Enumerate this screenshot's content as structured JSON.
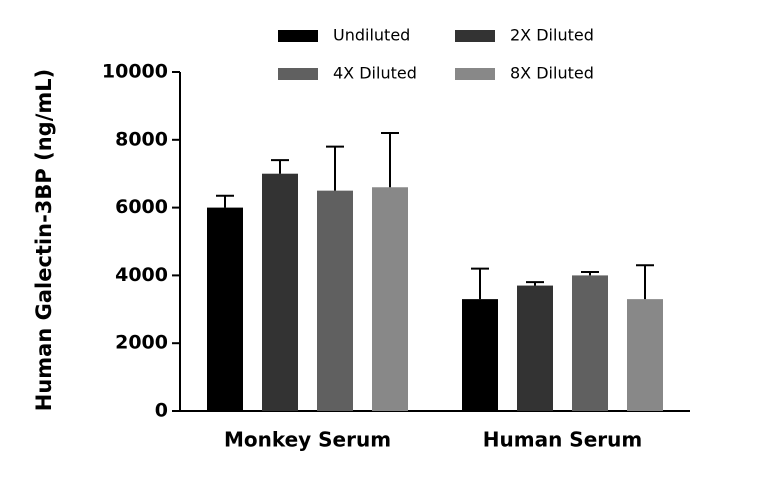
{
  "chart_data": {
    "type": "bar",
    "ylabel": "Human Galectin-3BP (ng/mL)",
    "categories": [
      "Monkey Serum",
      "Human Serum"
    ],
    "series": [
      {
        "name": "Undiluted",
        "color": "#000000",
        "values": [
          6000,
          3300
        ],
        "errors": [
          350,
          900
        ]
      },
      {
        "name": "2X Diluted",
        "color": "#333333",
        "values": [
          7000,
          3700
        ],
        "errors": [
          400,
          100
        ]
      },
      {
        "name": "4X Diluted",
        "color": "#606060",
        "values": [
          6500,
          4000
        ],
        "errors": [
          1300,
          100
        ]
      },
      {
        "name": "8X Diluted",
        "color": "#888888",
        "values": [
          6600,
          3300
        ],
        "errors": [
          1600,
          1000
        ]
      }
    ],
    "ylim": [
      0,
      10000
    ],
    "yticks": [
      0,
      2000,
      4000,
      6000,
      8000,
      10000
    ]
  }
}
